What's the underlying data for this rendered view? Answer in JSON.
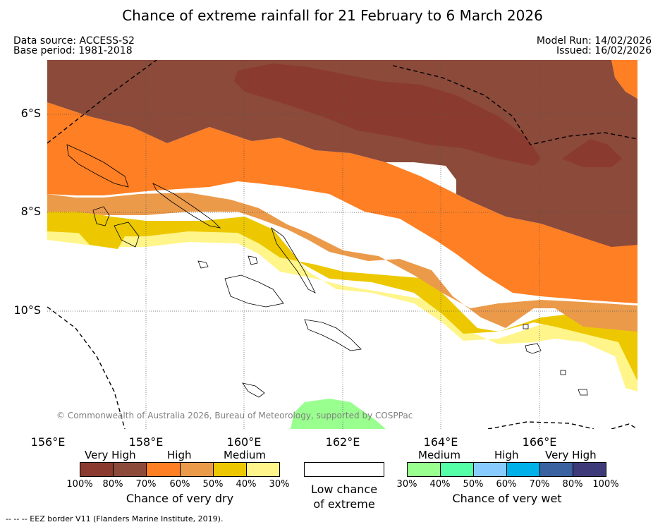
{
  "title": "Chance of extreme rainfall for 21 February to 6 March 2026",
  "data_source": "Data source: ACCESS-S2",
  "base_period": "Base period: 1981-2018",
  "model_run": "Model Run: 14/02/2026",
  "issued": "Issued: 16/02/2026",
  "lat_labels": [
    "6°S",
    "8°S",
    "10°S"
  ],
  "lon_labels": [
    "156°E",
    "158°E",
    "160°E",
    "162°E",
    "164°E",
    "166°E"
  ],
  "copyright": "© Commonwealth of Australia 2026, Bureau of Meteorology, supported by COSPPac",
  "legend_dry": {
    "headers": [
      "Very High",
      "High",
      "Medium"
    ],
    "ticks": [
      "100%",
      "80%",
      "70%",
      "60%",
      "50%",
      "40%",
      "30%"
    ],
    "colors": [
      "#8B3A2F",
      "#8B4A3A",
      "#FF7F24",
      "#EB9A4A",
      "#EDC800",
      "#FFF58A"
    ],
    "caption": "Chance of very dry"
  },
  "legend_low": {
    "caption_line1": "Low chance",
    "caption_line2": "of extreme",
    "color": "#FFFFFF"
  },
  "legend_wet": {
    "headers": [
      "Medium",
      "High",
      "Very High"
    ],
    "ticks": [
      "30%",
      "40%",
      "50%",
      "60%",
      "70%",
      "80%",
      "100%"
    ],
    "colors": [
      "#99FF8F",
      "#55FFA8",
      "#88CCFF",
      "#00B0E8",
      "#3A62A0",
      "#3E3A7A"
    ],
    "caption": "Chance of very wet"
  },
  "footer": "--  --  -- EEZ border V11 (Flanders Marine Institute, 2019)."
}
